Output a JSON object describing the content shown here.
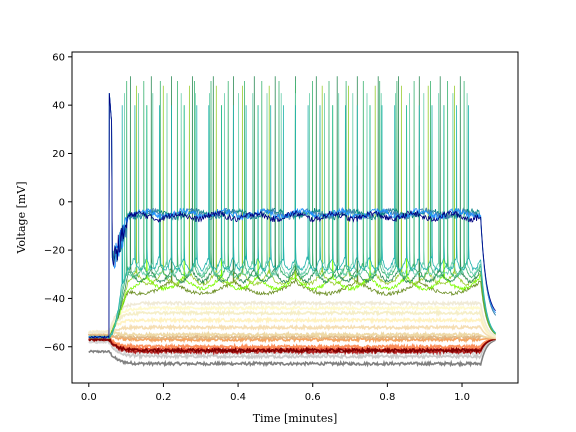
{
  "chart_data": {
    "type": "line",
    "title": "",
    "xlabel": "Time [minutes]",
    "ylabel": "Voltage [mV]",
    "xlim": [
      -0.045,
      1.15
    ],
    "ylim": [
      -75,
      62
    ],
    "xticks": [
      0.0,
      0.2,
      0.4,
      0.6,
      0.8,
      1.0
    ],
    "xtick_labels": [
      "0.0",
      "0.2",
      "0.4",
      "0.6",
      "0.8",
      "1.0"
    ],
    "yticks": [
      -60,
      -40,
      -20,
      0,
      20,
      40,
      60
    ],
    "ytick_labels": [
      "−60",
      "−40",
      "−20",
      "0",
      "20",
      "40",
      "60"
    ],
    "grid": false,
    "legend": "none",
    "stimulus_window": [
      0.055,
      1.05
    ],
    "series": [
      {
        "rest": -62,
        "plateau": -67,
        "end": -56.5,
        "color": "#808080",
        "kind": "hyper"
      },
      {
        "rest": -58,
        "plateau": -64,
        "end": -56.5,
        "color": "#c8c8c8",
        "kind": "hyper"
      },
      {
        "rest": -58,
        "plateau": -62.5,
        "end": -56.5,
        "color": "#d9d9d9",
        "kind": "hyper"
      },
      {
        "rest": -57,
        "plateau": -62,
        "end": -56.5,
        "color": "#b22222",
        "kind": "hyper"
      },
      {
        "rest": -57,
        "plateau": -61,
        "end": -56.5,
        "color": "#e34a33",
        "kind": "hyper"
      },
      {
        "rest": -56,
        "plateau": -60,
        "end": -56.5,
        "color": "#fc8d59",
        "kind": "hyper"
      },
      {
        "rest": -57,
        "plateau": -61.5,
        "end": -56.5,
        "color": "#7f0000",
        "kind": "hyper"
      },
      {
        "rest": -55,
        "plateau": -57,
        "end": -56.5,
        "color": "#f4a460",
        "kind": "sub"
      },
      {
        "rest": -55,
        "plateau": -56,
        "end": -56.5,
        "color": "#deb887",
        "kind": "sub"
      },
      {
        "rest": -54,
        "plateau": -55,
        "end": -56.5,
        "color": "#eed9a6",
        "kind": "sub"
      },
      {
        "rest": -54,
        "plateau": -52,
        "end": -56.5,
        "color": "#f5deb3",
        "kind": "sub"
      },
      {
        "rest": -54,
        "plateau": -49,
        "end": -56.5,
        "color": "#fff2c0",
        "kind": "sub"
      },
      {
        "rest": -54,
        "plateau": -46,
        "end": -56.5,
        "color": "#f5eec8",
        "kind": "sub"
      },
      {
        "rest": -54,
        "plateau": -44,
        "end": -56.5,
        "color": "#fffacd",
        "kind": "sub"
      },
      {
        "rest": -54,
        "plateau": -42,
        "end": -56.5,
        "color": "#f0ead6",
        "kind": "sub"
      },
      {
        "rest": -56,
        "plateau": -33,
        "end": -56.5,
        "color": "#6b8e23",
        "kind": "spike",
        "n": 6,
        "peak": 15
      },
      {
        "rest": -56,
        "plateau": -31,
        "end": -56.5,
        "color": "#7cfc00",
        "kind": "spike",
        "n": 10,
        "peak": 40
      },
      {
        "rest": -56,
        "plateau": -29,
        "end": -56.5,
        "color": "#9acd32",
        "kind": "spike",
        "n": 14,
        "peak": 48
      },
      {
        "rest": -56,
        "plateau": -28,
        "end": -56.5,
        "color": "#2e8b57",
        "kind": "spike",
        "n": 18,
        "peak": 52
      },
      {
        "rest": -56,
        "plateau": -26,
        "end": -56.5,
        "color": "#3cb371",
        "kind": "spike",
        "n": 22,
        "peak": 50
      },
      {
        "rest": -56,
        "plateau": -25,
        "end": -56.5,
        "color": "#66cdaa",
        "kind": "spike",
        "n": 26,
        "peak": 45
      },
      {
        "rest": -56,
        "plateau": -23,
        "end": -56.5,
        "color": "#20b2aa",
        "kind": "spike",
        "n": 30,
        "peak": 40
      },
      {
        "rest": -56,
        "plateau": -5,
        "end": -50,
        "color": "#008080",
        "kind": "block"
      },
      {
        "rest": -56,
        "plateau": -5,
        "end": -50,
        "color": "#4682b4",
        "kind": "block"
      },
      {
        "rest": -56,
        "plateau": -5,
        "end": -49,
        "color": "#1e90ff",
        "kind": "block"
      },
      {
        "rest": -56,
        "plateau": -6,
        "end": -48,
        "color": "#000080",
        "kind": "block"
      }
    ]
  }
}
